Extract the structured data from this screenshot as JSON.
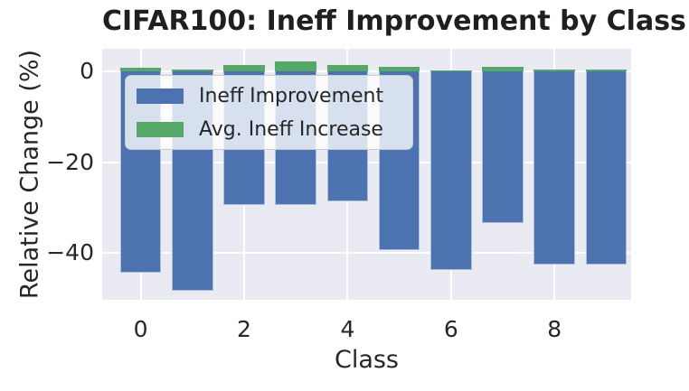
{
  "title": "CIFAR100: Ineff Improvement by Class",
  "colors": {
    "bar_blue": "#4C72B0",
    "bar_green": "#55A868",
    "plot_background": "#EAEAF2",
    "gridline": "#FFFFFF",
    "text": "#262626"
  },
  "chart_data": {
    "type": "bar",
    "title": "CIFAR100: Ineff Improvement by Class",
    "xlabel": "Class",
    "ylabel": "Relative Change (%)",
    "categories": [
      0,
      1,
      2,
      3,
      4,
      5,
      6,
      7,
      8,
      9
    ],
    "series": [
      {
        "name": "Ineff Improvement",
        "color": "#4C72B0",
        "values": [
          -44.3,
          -48.3,
          -29.5,
          -29.4,
          -28.7,
          -39.3,
          -43.8,
          -33.4,
          -42.6,
          -42.5
        ]
      },
      {
        "name": "Avg. Ineff Increase",
        "color": "#55A868",
        "values": [
          0.9,
          0.5,
          1.4,
          2.2,
          1.4,
          1.0,
          0.2,
          1.1,
          0.5,
          0.4
        ]
      }
    ],
    "x_tick_values": [
      0,
      2,
      4,
      6,
      8
    ],
    "x_tick_labels": [
      "0",
      "2",
      "4",
      "6",
      "8"
    ],
    "y_tick_values": [
      0,
      -20,
      -40
    ],
    "y_tick_labels": [
      "0",
      "−20",
      "−40"
    ],
    "ylim": [
      -50.4,
      5.0
    ],
    "grid": true,
    "legend_position": "upper-left",
    "bar_style": "stacked-around-zero"
  }
}
